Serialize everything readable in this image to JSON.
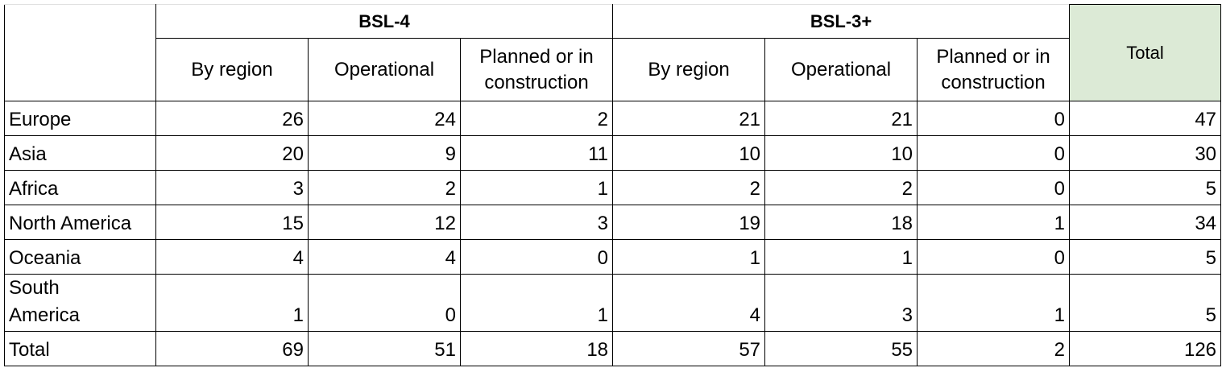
{
  "table": {
    "groups": [
      "BSL-4",
      "BSL-3+"
    ],
    "subheaders": [
      "By region",
      "Operational",
      "Planned or in construction",
      "By region",
      "Operational",
      "Planned or in construction"
    ],
    "total_header": "Total",
    "rows": [
      {
        "label": "Europe",
        "values": [
          26,
          24,
          2,
          21,
          21,
          0,
          47
        ]
      },
      {
        "label": "Asia",
        "values": [
          20,
          9,
          11,
          10,
          10,
          0,
          30
        ]
      },
      {
        "label": "Africa",
        "values": [
          3,
          2,
          1,
          2,
          2,
          0,
          5
        ]
      },
      {
        "label": "North America",
        "values": [
          15,
          12,
          3,
          19,
          18,
          1,
          34
        ]
      },
      {
        "label": "Oceania",
        "values": [
          4,
          4,
          0,
          1,
          1,
          0,
          5
        ]
      },
      {
        "label": "South America",
        "values": [
          1,
          0,
          1,
          4,
          3,
          1,
          5
        ]
      },
      {
        "label": "Total",
        "values": [
          69,
          51,
          18,
          57,
          55,
          2,
          126
        ]
      }
    ]
  }
}
